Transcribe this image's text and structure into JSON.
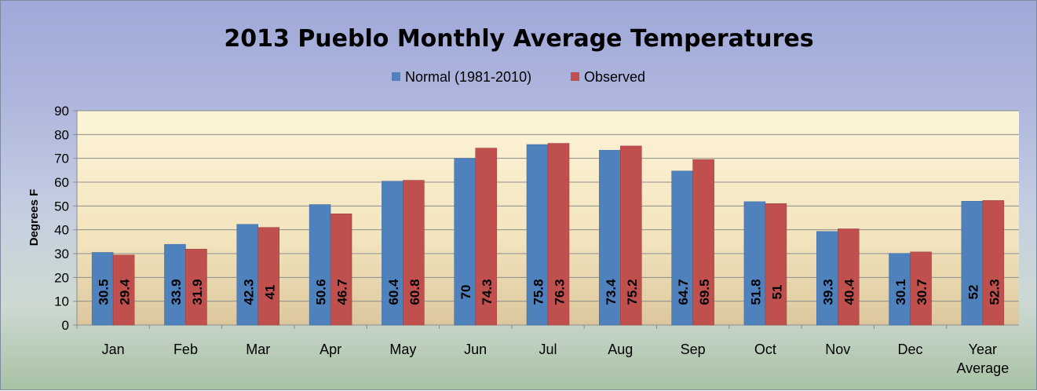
{
  "chart_data": {
    "type": "bar",
    "title": "2013 Pueblo Monthly Average Temperatures",
    "ylabel": "Degrees  F",
    "xlabel": "",
    "ylim": [
      0,
      90
    ],
    "yticks": [
      0,
      10,
      20,
      30,
      40,
      50,
      60,
      70,
      80,
      90
    ],
    "grid": true,
    "legend_position": "top",
    "categories": [
      "Jan",
      "Feb",
      "Mar",
      "Apr",
      "May",
      "Jun",
      "Jul",
      "Aug",
      "Sep",
      "Oct",
      "Nov",
      "Dec",
      "Year Average"
    ],
    "series": [
      {
        "name": "Normal (1981-2010)",
        "color": "#4f81bd",
        "values": [
          30.5,
          33.9,
          42.3,
          50.6,
          60.4,
          70,
          75.8,
          73.4,
          64.7,
          51.8,
          39.3,
          30.1,
          52
        ],
        "labels": [
          "30.5",
          "33.9",
          "42.3",
          "50.6",
          "60.4",
          "70",
          "75.8",
          "73.4",
          "64.7",
          "51.8",
          "39.3",
          "30.1",
          "52"
        ]
      },
      {
        "name": "Observed",
        "color": "#c0504d",
        "values": [
          29.4,
          31.9,
          41,
          46.7,
          60.8,
          74.3,
          76.3,
          75.2,
          69.5,
          51,
          40.4,
          30.7,
          52.3
        ],
        "labels": [
          "29.4",
          "31.9",
          "41",
          "46.7",
          "60.8",
          "74.3",
          "76.3",
          "75.2",
          "69.5",
          "51",
          "40.4",
          "30.7",
          "52.3"
        ]
      }
    ]
  }
}
